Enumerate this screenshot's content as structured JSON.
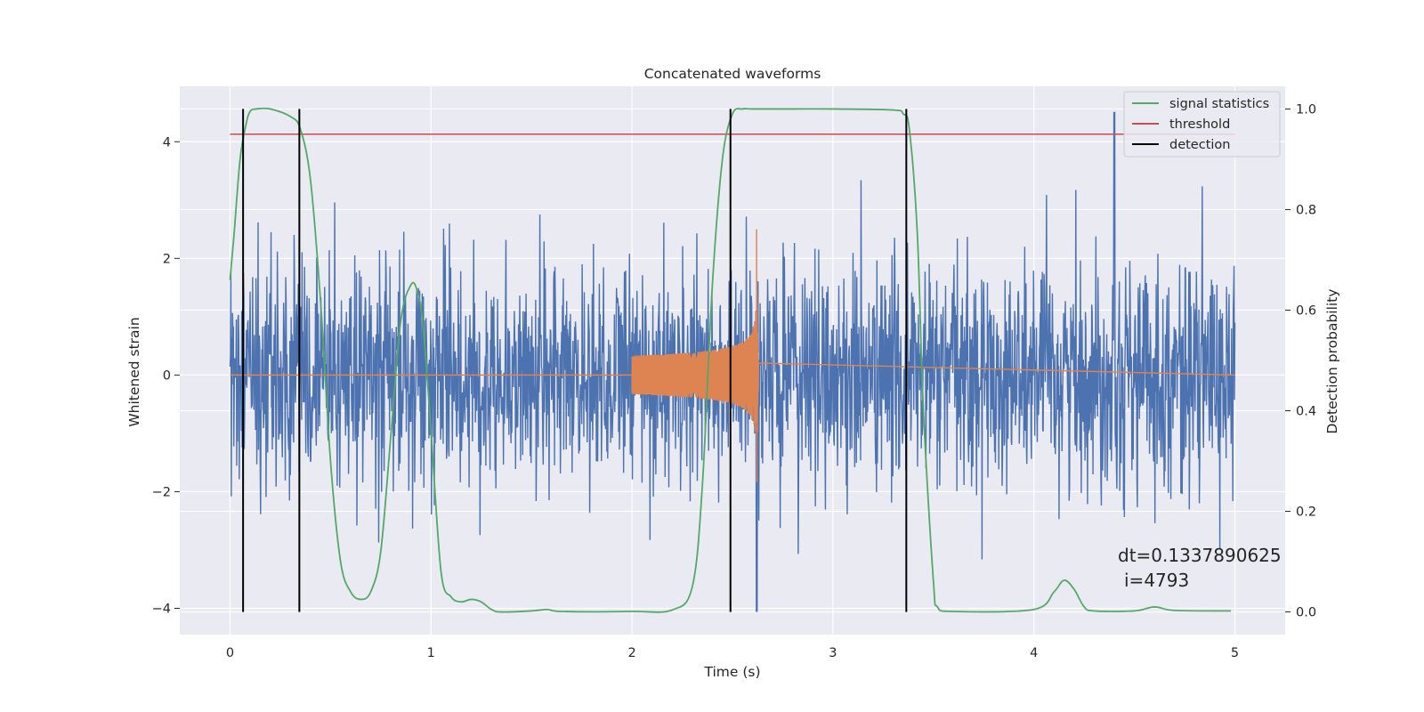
{
  "chart_data": {
    "type": "line",
    "title": "Concatenated waveforms",
    "xlabel": "Time (s)",
    "ylabel": "Whitened strain",
    "y2label": "Detection probability",
    "xlim": [
      -0.25,
      5.25
    ],
    "ylim": [
      -4.45,
      4.95
    ],
    "y2lim": [
      -0.045,
      1.045
    ],
    "xticks": [
      0,
      1,
      2,
      3,
      4,
      5
    ],
    "xtick_labels": [
      "0",
      "1",
      "2",
      "3",
      "4",
      "5"
    ],
    "yticks": [
      -4,
      -2,
      0,
      2,
      4
    ],
    "ytick_labels": [
      "−4",
      "−2",
      "0",
      "2",
      "4"
    ],
    "y2ticks": [
      0.0,
      0.2,
      0.4,
      0.6,
      0.8,
      1.0
    ],
    "y2tick_labels": [
      "0.0",
      "0.2",
      "0.4",
      "0.6",
      "0.8",
      "1.0"
    ],
    "grid": true,
    "legend_position": "top-right",
    "colors": {
      "noise": "#4c72b0",
      "template": "#dd8452",
      "signal_statistics": "#55a868",
      "threshold": "#c44e52",
      "detection": "#000000",
      "background": "#eaeaf2"
    },
    "series": [
      {
        "name": "signal statistics",
        "axis": "right",
        "x": [
          0.0,
          0.02,
          0.05,
          0.08,
          0.1,
          0.13,
          0.2,
          0.3,
          0.35,
          0.4,
          0.45,
          0.5,
          0.55,
          0.6,
          0.65,
          0.7,
          0.75,
          0.8,
          0.85,
          0.9,
          0.93,
          0.96,
          1.0,
          1.05,
          1.1,
          1.15,
          1.2,
          1.25,
          1.3,
          1.35,
          1.5,
          1.58,
          1.65,
          2.0,
          2.2,
          2.3,
          2.35,
          2.4,
          2.45,
          2.5,
          2.55,
          2.6,
          2.8,
          3.0,
          3.3,
          3.35,
          3.38,
          3.42,
          3.45,
          3.5,
          3.52,
          3.6,
          4.0,
          4.1,
          4.15,
          4.2,
          4.25,
          4.3,
          4.5,
          4.6,
          4.7,
          4.98
        ],
        "values": [
          0.66,
          0.75,
          0.9,
          0.97,
          0.995,
          1.0,
          1.0,
          0.985,
          0.96,
          0.86,
          0.62,
          0.3,
          0.1,
          0.04,
          0.025,
          0.04,
          0.12,
          0.35,
          0.58,
          0.65,
          0.64,
          0.57,
          0.36,
          0.08,
          0.03,
          0.02,
          0.025,
          0.02,
          0.005,
          0.0,
          0.002,
          0.005,
          0.001,
          0.001,
          0.004,
          0.05,
          0.25,
          0.65,
          0.9,
          0.99,
          1.0,
          1.0,
          1.0,
          1.0,
          0.998,
          0.99,
          0.96,
          0.75,
          0.4,
          0.06,
          0.01,
          0.001,
          0.005,
          0.04,
          0.063,
          0.045,
          0.01,
          0.002,
          0.002,
          0.01,
          0.003,
          0.002
        ]
      },
      {
        "name": "threshold",
        "axis": "right",
        "x": [
          0.0,
          5.0
        ],
        "values": [
          0.95,
          0.95
        ]
      },
      {
        "name": "detection",
        "axis": "right",
        "type": "vlines",
        "x": [
          0.065,
          0.345,
          2.49,
          3.365
        ],
        "ymin": 0.0,
        "ymax": 1.0
      },
      {
        "axis": "left",
        "type": "noise",
        "x": [
          0.0,
          5.0
        ],
        "envelope": [
          -4.05,
          4.5
        ],
        "samples": 2400
      },
      {
        "axis": "left",
        "type": "chirp",
        "x": [
          2.0,
          2.63
        ],
        "values_at_start": 0.3,
        "peak": 2.5,
        "peak_x": 2.62
      }
    ],
    "annotation": [
      "dt=0.1337890625",
      "i=4793"
    ]
  }
}
